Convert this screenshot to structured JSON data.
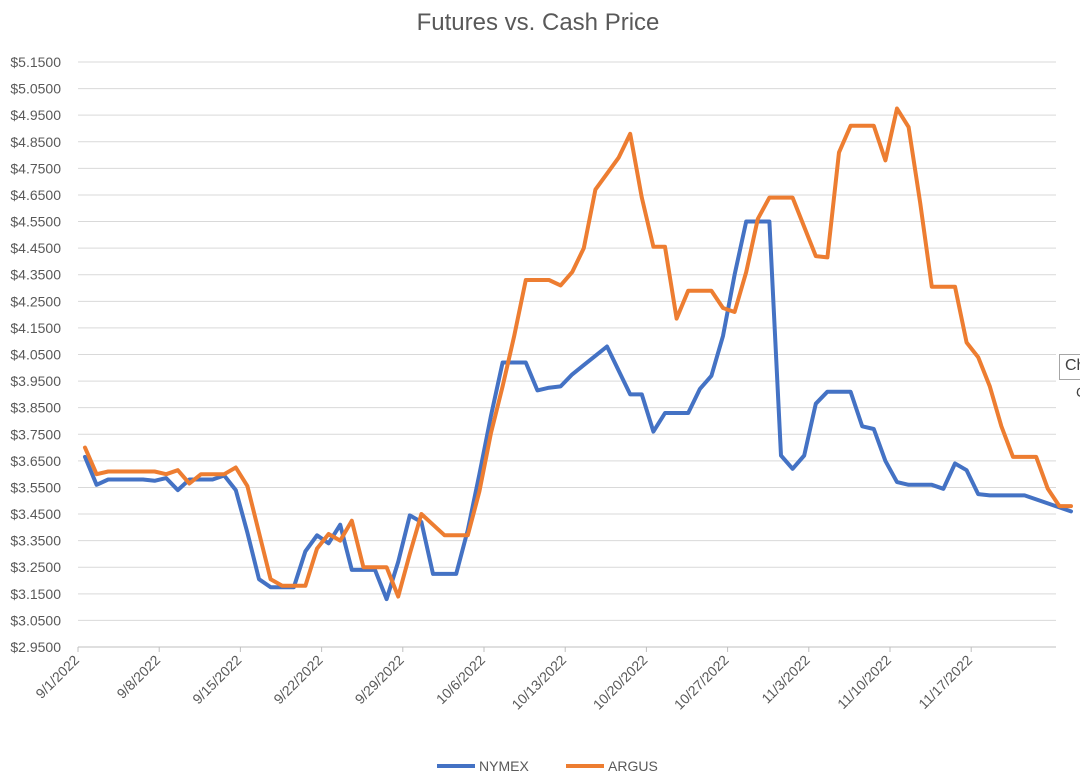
{
  "chart_data": {
    "type": "line",
    "title": "Futures vs. Cash Price",
    "xlabel": "",
    "ylabel": "",
    "ylim": [
      2.95,
      5.15
    ],
    "y_ticks": [
      2.95,
      3.05,
      3.15,
      3.25,
      3.35,
      3.45,
      3.55,
      3.65,
      3.75,
      3.85,
      3.95,
      4.05,
      4.15,
      4.25,
      4.35,
      4.45,
      4.55,
      4.65,
      4.75,
      4.85,
      4.95,
      5.05,
      5.15
    ],
    "y_tick_labels": [
      "$2.9500",
      "$3.0500",
      "$3.1500",
      "$3.2500",
      "$3.3500",
      "$3.4500",
      "$3.5500",
      "$3.6500",
      "$3.7500",
      "$3.8500",
      "$3.9500",
      "$4.0500",
      "$4.1500",
      "$4.2500",
      "$4.3500",
      "$4.4500",
      "$4.5500",
      "$4.6500",
      "$4.7500",
      "$4.8500",
      "$4.9500",
      "$5.0500",
      "$5.1500"
    ],
    "x_tick_labels": [
      "9/1/2022",
      "9/8/2022",
      "9/15/2022",
      "9/22/2022",
      "9/29/2022",
      "10/6/2022",
      "10/13/2022",
      "10/20/2022",
      "10/27/2022",
      "11/3/2022",
      "11/10/2022",
      "11/17/2022"
    ],
    "grid": true,
    "legend_position": "bottom",
    "x": [
      "2022-09-01",
      "2022-09-02",
      "2022-09-03",
      "2022-09-04",
      "2022-09-05",
      "2022-09-06",
      "2022-09-07",
      "2022-09-08",
      "2022-09-09",
      "2022-09-10",
      "2022-09-11",
      "2022-09-12",
      "2022-09-13",
      "2022-09-14",
      "2022-09-15",
      "2022-09-16",
      "2022-09-17",
      "2022-09-18",
      "2022-09-19",
      "2022-09-20",
      "2022-09-21",
      "2022-09-22",
      "2022-09-23",
      "2022-09-24",
      "2022-09-25",
      "2022-09-26",
      "2022-09-27",
      "2022-09-28",
      "2022-09-29",
      "2022-09-30",
      "2022-10-01",
      "2022-10-02",
      "2022-10-03",
      "2022-10-04",
      "2022-10-05",
      "2022-10-06",
      "2022-10-07",
      "2022-10-08",
      "2022-10-09",
      "2022-10-10",
      "2022-10-11",
      "2022-10-12",
      "2022-10-13",
      "2022-10-14",
      "2022-10-15",
      "2022-10-16",
      "2022-10-17",
      "2022-10-18",
      "2022-10-19",
      "2022-10-20",
      "2022-10-21",
      "2022-10-22",
      "2022-10-23",
      "2022-10-24",
      "2022-10-25",
      "2022-10-26",
      "2022-10-27",
      "2022-10-28",
      "2022-10-29",
      "2022-10-30",
      "2022-10-31",
      "2022-11-01",
      "2022-11-02",
      "2022-11-03",
      "2022-11-04",
      "2022-11-05",
      "2022-11-06",
      "2022-11-07",
      "2022-11-08",
      "2022-11-09",
      "2022-11-10",
      "2022-11-11",
      "2022-11-12",
      "2022-11-13",
      "2022-11-14",
      "2022-11-15",
      "2022-11-16",
      "2022-11-17",
      "2022-11-18",
      "2022-11-19",
      "2022-11-20",
      "2022-11-21",
      "2022-11-22",
      "2022-11-23",
      "2022-11-24",
      "2022-11-25"
    ],
    "series": [
      {
        "name": "NYMEX",
        "color": "#4472c4",
        "values": [
          3.665,
          3.56,
          3.58,
          3.58,
          3.58,
          3.58,
          3.575,
          3.585,
          3.54,
          3.58,
          3.58,
          3.58,
          3.595,
          3.54,
          3.38,
          3.205,
          3.175,
          3.175,
          3.175,
          3.31,
          3.37,
          3.34,
          3.41,
          3.24,
          3.24,
          3.24,
          3.13,
          3.27,
          3.445,
          3.42,
          3.225,
          3.225,
          3.225,
          3.39,
          3.6,
          3.82,
          4.02,
          4.02,
          4.02,
          3.915,
          3.925,
          3.93,
          3.975,
          4.01,
          4.045,
          4.08,
          3.99,
          3.9,
          3.9,
          3.76,
          3.83,
          3.83,
          3.83,
          3.92,
          3.97,
          4.12,
          4.35,
          4.55,
          4.55,
          4.55,
          3.67,
          3.62,
          3.67,
          3.865,
          3.91,
          3.91,
          3.91,
          3.78,
          3.77,
          3.65,
          3.57,
          3.56,
          3.56,
          3.56,
          3.545,
          3.64,
          3.615,
          3.525,
          3.52,
          3.52,
          3.52,
          3.52,
          3.505,
          3.49,
          3.475,
          3.46
        ]
      },
      {
        "name": "ARGUS",
        "color": "#ed7d31",
        "values": [
          3.7,
          3.6,
          3.61,
          3.61,
          3.61,
          3.61,
          3.61,
          3.6,
          3.615,
          3.565,
          3.6,
          3.6,
          3.6,
          3.625,
          3.555,
          3.38,
          3.205,
          3.18,
          3.18,
          3.18,
          3.32,
          3.375,
          3.35,
          3.425,
          3.25,
          3.25,
          3.25,
          3.14,
          3.3,
          3.45,
          3.41,
          3.37,
          3.37,
          3.37,
          3.535,
          3.755,
          3.93,
          4.12,
          4.33,
          4.33,
          4.33,
          4.31,
          4.36,
          4.45,
          4.67,
          4.73,
          4.79,
          4.88,
          4.64,
          4.455,
          4.455,
          4.185,
          4.29,
          4.29,
          4.29,
          4.225,
          4.21,
          4.36,
          4.56,
          4.64,
          4.64,
          4.64,
          4.53,
          4.42,
          4.415,
          4.81,
          4.91,
          4.91,
          4.91,
          4.78,
          4.975,
          4.905,
          4.62,
          4.305,
          4.305,
          4.305,
          4.095,
          4.04,
          3.93,
          3.78,
          3.665,
          3.665,
          3.665,
          3.545,
          3.48,
          3.48
        ]
      }
    ]
  },
  "tooltip": {
    "label": "Ch",
    "sub": "C"
  }
}
